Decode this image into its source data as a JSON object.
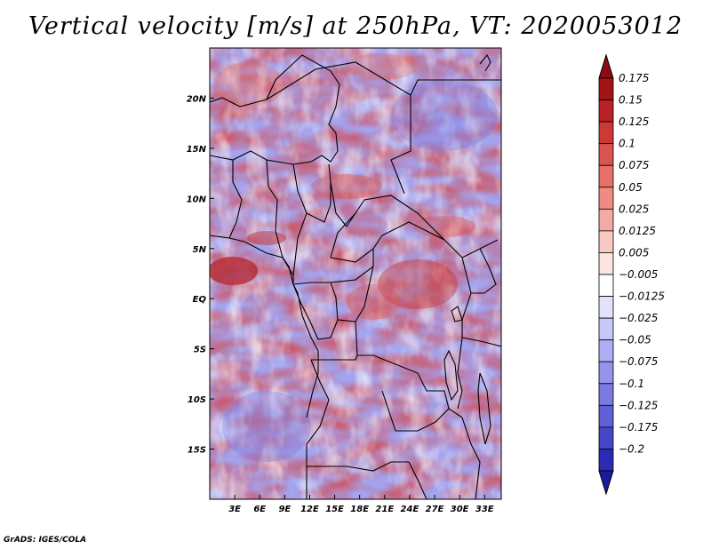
{
  "title": "Vertical velocity [m/s] at 250hPa, VT: 2020053012",
  "credit": "GrADS: IGES/COLA",
  "map": {
    "variable": "Vertical velocity",
    "units": "m/s",
    "level": "250hPa",
    "valid_time": "2020053012",
    "lon_range": [
      0,
      35
    ],
    "lat_range": [
      -20,
      25
    ],
    "lon_ticks": [
      {
        "value": 3,
        "label": "3E"
      },
      {
        "value": 6,
        "label": "6E"
      },
      {
        "value": 9,
        "label": "9E"
      },
      {
        "value": 12,
        "label": "12E"
      },
      {
        "value": 15,
        "label": "15E"
      },
      {
        "value": 18,
        "label": "18E"
      },
      {
        "value": 21,
        "label": "21E"
      },
      {
        "value": 24,
        "label": "24E"
      },
      {
        "value": 27,
        "label": "27E"
      },
      {
        "value": 30,
        "label": "30E"
      },
      {
        "value": 33,
        "label": "33E"
      }
    ],
    "lat_ticks": [
      {
        "value": 20,
        "label": "20N"
      },
      {
        "value": 15,
        "label": "15N"
      },
      {
        "value": 10,
        "label": "10N"
      },
      {
        "value": 5,
        "label": "5N"
      },
      {
        "value": 0,
        "label": "EQ"
      },
      {
        "value": -5,
        "label": "5S"
      },
      {
        "value": -10,
        "label": "10S"
      },
      {
        "value": -15,
        "label": "15S"
      }
    ]
  },
  "colorbar": {
    "levels": [
      {
        "label": "0.175",
        "color": "#a01418"
      },
      {
        "label": "0.15",
        "color": "#b82226"
      },
      {
        "label": "0.125",
        "color": "#cc3a38"
      },
      {
        "label": "0.1",
        "color": "#dc5450"
      },
      {
        "label": "0.075",
        "color": "#e67068"
      },
      {
        "label": "0.05",
        "color": "#ee8c84"
      },
      {
        "label": "0.025",
        "color": "#f4aaa4"
      },
      {
        "label": "0.0125",
        "color": "#f8c8c2"
      },
      {
        "label": "0.005",
        "color": "#fce4e0"
      },
      {
        "label": "−0.005",
        "color": "#ffffff"
      },
      {
        "label": "−0.0125",
        "color": "#e2e2fc"
      },
      {
        "label": "−0.025",
        "color": "#c8c8f8"
      },
      {
        "label": "−0.05",
        "color": "#aeaef2"
      },
      {
        "label": "−0.075",
        "color": "#9494ec"
      },
      {
        "label": "−0.1",
        "color": "#7a7ae2"
      },
      {
        "label": "−0.125",
        "color": "#6060d6"
      },
      {
        "label": "−0.175",
        "color": "#4646c8"
      },
      {
        "label": "−0.2",
        "color": "#2a2ab4"
      }
    ],
    "top_triangle_color": "#8c0a10",
    "bottom_triangle_color": "#1a1aa0"
  }
}
